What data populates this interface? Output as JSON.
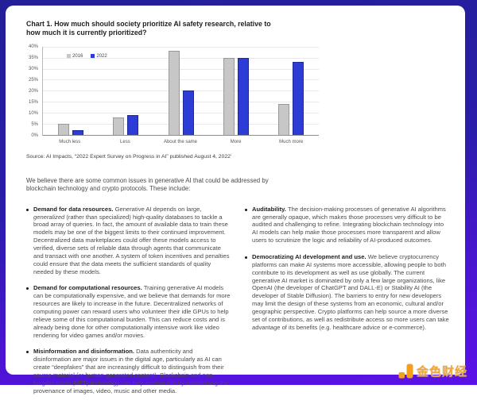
{
  "colors": {
    "frame_top": "#221f97",
    "frame_bottom": "#5b11e8",
    "bar_gray_2016": "#c7c7c7",
    "bar_blue_2022": "#2e3cd6",
    "logo_orange": "#f5a01d"
  },
  "chart_data": {
    "type": "bar",
    "title": "Chart 1. How much should society prioritize AI safety research, relative to how much it is currently prioritized?",
    "categories": [
      "Much less",
      "Less",
      "About the same",
      "More",
      "Much more"
    ],
    "series": [
      {
        "name": "2016",
        "color": "#c7c7c7",
        "border": "#999999",
        "values": [
          5,
          8,
          38,
          35,
          14
        ]
      },
      {
        "name": "2022",
        "color": "#2e3cd6",
        "border": "#1d2a9a",
        "values": [
          2,
          9,
          20,
          35,
          33
        ]
      }
    ],
    "ylabel": "",
    "xlabel": "",
    "ylim": [
      0,
      40
    ],
    "yticks": [
      "0%",
      "5%",
      "10%",
      "15%",
      "20%",
      "25%",
      "30%",
      "35%",
      "40%"
    ],
    "grid": true,
    "legend_position": "top-left",
    "source": "Source: AI Impacts, “2022 Expert Survey on Progress in AI” published August 4, 2022’"
  },
  "intro": "We believe there are some common issues in generative AI that could be addressed by blockchain technology and crypto protocols. These include:",
  "columns": {
    "left": [
      {
        "lead": "Demand for data resources.",
        "body": [
          {
            "text": "Generative AI depends on large, "
          },
          {
            "text": "generalized",
            "italic": true
          },
          {
            "text": " (rather than specialized) high-quality databases to tackle a broad array of queries. In fact, the amount of available data to train these models may be one of the biggest limits to their continued improvement. Decentralized data marketplaces could offer these models access to verified, diverse sets of reliable data through agents that communicate and transact with one another. A system of token incentives and penalties could ensure that the data meets the sufficient standards of quality needed by these models."
          }
        ]
      },
      {
        "lead": "Demand for computational resources.",
        "body": [
          {
            "text": "Training generative AI models can be computationally expensive, and we believe that demands for more resources are likely to increase in the future. Decentralized networks of computing power can reward users who volunteer their idle GPUs to help relieve some of this computational burden. This can reduce costs and is already being done for other computationally intensive work like video rendering for video games and/or movies."
          }
        ]
      },
      {
        "lead": "Misinformation and disinformation.",
        "body": [
          {
            "text": "Data authenticity and disinformation are major issues in the digital age, particularly as AI can create “deepfakes” that are increasingly difficult to distinguish from their source material (or human-generated content). Blockchain and non-fungible token (NFT) technology can help combat this by establishing the provenance of images, video, music and other media."
          }
        ]
      }
    ],
    "right": [
      {
        "lead": "Auditability.",
        "body": [
          {
            "text": "The decision-making processes of generative AI algorithms are generally opaque, which makes those processes very difficult to be audited and challenging to refine. Integrating blockchain technology into AI models can help make those processes more transparent and allow users to scrutinize the logic and reliability of AI-produced outcomes."
          }
        ]
      },
      {
        "lead": "Democratizing AI development and use.",
        "body": [
          {
            "text": "We believe cryptocurrency platforms can make AI systems more accessible, allowing people to both contribute to its development as well as use globally. The current generative AI market is dominated by only a few large organizations, like OpenAI (the developer of ChatGPT and DALL-E) or Stability AI (the developer of Stable Diffusion). The barriers to entry for new developers may limit the design of these systems from an economic, cultural and/or geographic perspective. Crypto platforms can help source a more diverse set of contributions, as well as redistribute access so more users can take advantage of its benefits (e.g. healthcare advice or e-commerce)."
          }
        ]
      }
    ]
  },
  "footer": {
    "logo_text": "金色财经"
  }
}
